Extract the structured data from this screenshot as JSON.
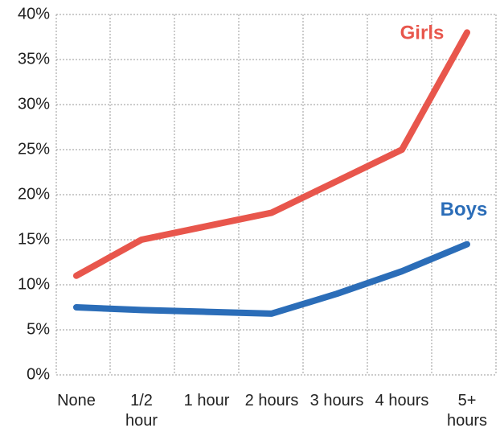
{
  "chart_data": {
    "type": "line",
    "categories": [
      "None",
      "1/2 hour",
      "1 hour",
      "2 hours",
      "3 hours",
      "4 hours",
      "5+ hours"
    ],
    "series": [
      {
        "name": "Girls",
        "color": "#e8564c",
        "values": [
          11,
          15,
          16.5,
          18,
          21.5,
          25,
          38
        ]
      },
      {
        "name": "Boys",
        "color": "#2b6db8",
        "values": [
          7.5,
          7.2,
          7,
          6.8,
          9,
          11.5,
          14.5
        ]
      }
    ],
    "ylim": [
      0,
      40
    ],
    "yticks": [
      {
        "value": 0,
        "label": "0%"
      },
      {
        "value": 5,
        "label": "5%"
      },
      {
        "value": 10,
        "label": "10%"
      },
      {
        "value": 15,
        "label": "15%"
      },
      {
        "value": 20,
        "label": "20%"
      },
      {
        "value": 25,
        "label": "25%"
      },
      {
        "value": 30,
        "label": "30%"
      },
      {
        "value": 35,
        "label": "35%"
      },
      {
        "value": 40,
        "label": "40%"
      }
    ],
    "grid": true
  }
}
